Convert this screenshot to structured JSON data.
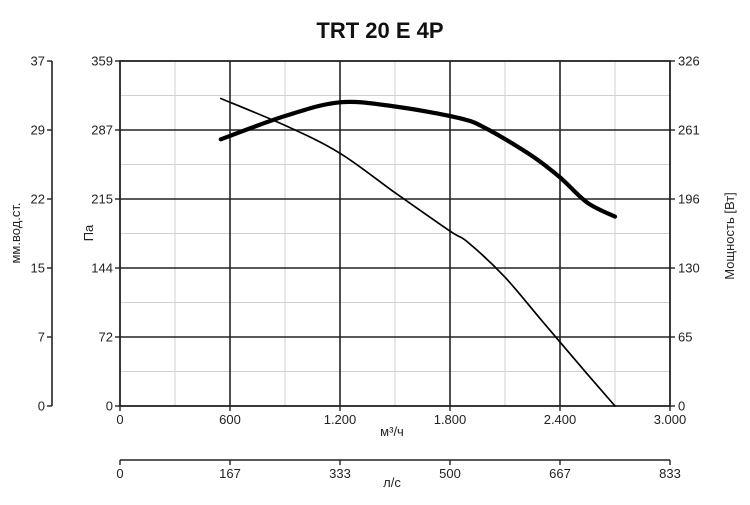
{
  "chart_data": {
    "type": "line",
    "title": "TRT 20 E 4P",
    "grid": true,
    "x_axis": {
      "label": "м³/ч",
      "range": [
        0,
        3000
      ],
      "ticks": [
        "0",
        "600",
        "1.200",
        "1.800",
        "2.400",
        "3.000"
      ]
    },
    "x2_axis": {
      "label": "л/с",
      "range": [
        0,
        833
      ],
      "ticks": [
        "0",
        "167",
        "333",
        "500",
        "667",
        "833"
      ]
    },
    "y_axis": {
      "label": "Па",
      "range": [
        0,
        359
      ],
      "ticks": [
        "0",
        "72",
        "144",
        "215",
        "287",
        "359"
      ]
    },
    "y_outer_axis": {
      "label": "мм.вод.ст.",
      "range": [
        0,
        37
      ],
      "ticks": [
        "0",
        "7",
        "15",
        "22",
        "29",
        "37"
      ]
    },
    "y_right_axis": {
      "label": "Мощность [Вт]",
      "range": [
        0,
        326
      ],
      "ticks": [
        "0",
        "65",
        "130",
        "196",
        "261",
        "326"
      ]
    },
    "series": [
      {
        "name": "",
        "axis": "y_right",
        "weight": "bold",
        "x": [
          550,
          900,
          1200,
          1500,
          1850,
          2000,
          2250,
          2400,
          2550,
          2700
        ],
        "y": [
          252,
          274,
          287,
          283,
          272,
          262,
          236,
          216,
          192,
          179
        ]
      },
      {
        "name": "",
        "axis": "y",
        "weight": "thin",
        "x": [
          550,
          900,
          1200,
          1500,
          1800,
          1900,
          2100,
          2300,
          2550,
          2700
        ],
        "y": [
          320,
          292,
          263,
          222,
          182,
          170,
          134,
          89,
          33,
          0
        ]
      }
    ]
  }
}
